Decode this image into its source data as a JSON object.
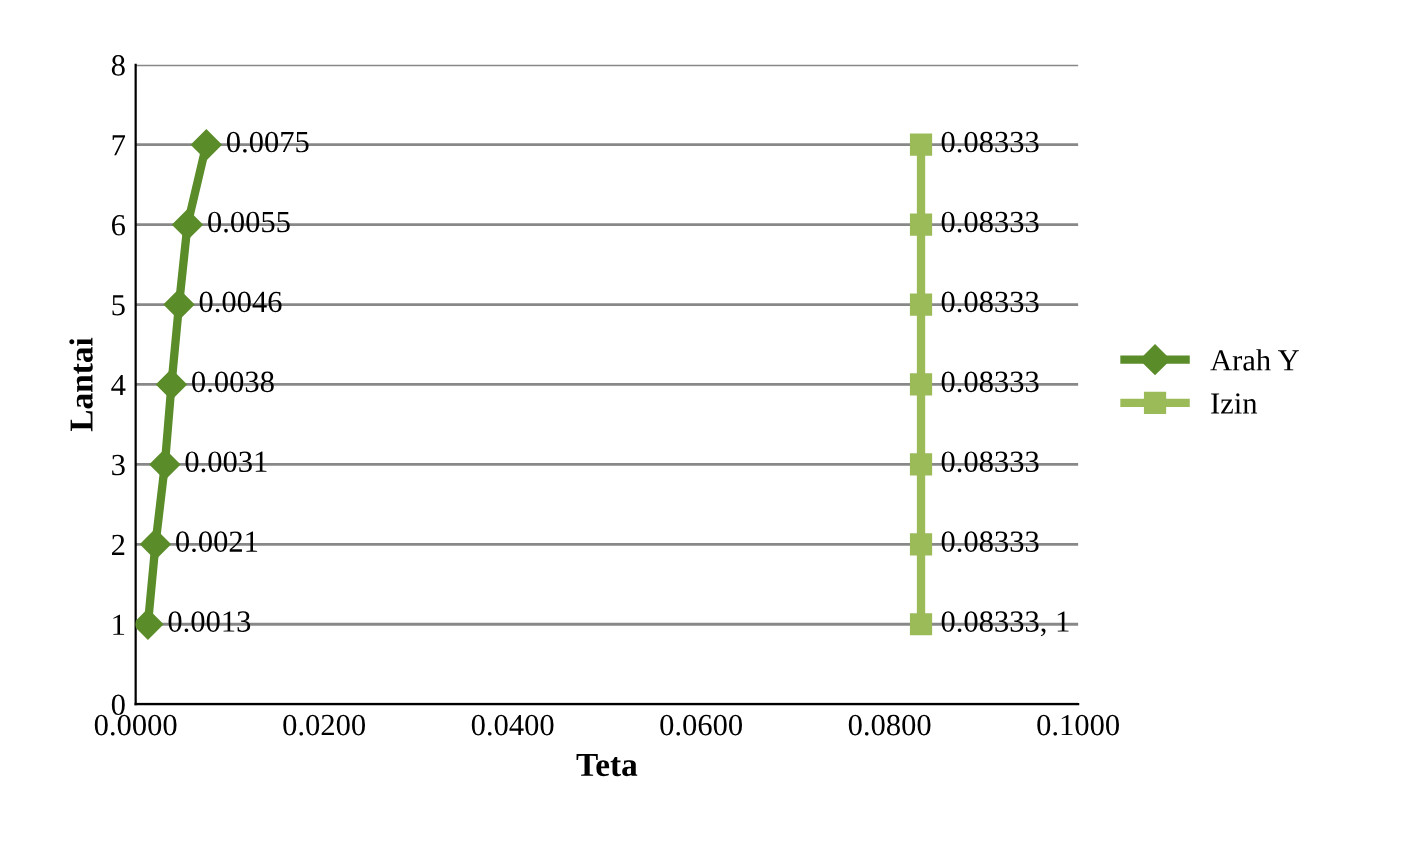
{
  "chart_data": {
    "type": "line",
    "xlabel": "Teta",
    "ylabel": "Lantai",
    "xlim": [
      0,
      0.1
    ],
    "xticks": [
      {
        "value": 0,
        "label": "0.0000"
      },
      {
        "value": 0.02,
        "label": "0.0200"
      },
      {
        "value": 0.04,
        "label": "0.0400"
      },
      {
        "value": 0.06,
        "label": "0.0600"
      },
      {
        "value": 0.08,
        "label": "0.0800"
      },
      {
        "value": 0.1,
        "label": "0.1000"
      }
    ],
    "ylim": [
      0,
      8
    ],
    "yticks": [
      0,
      1,
      2,
      3,
      4,
      5,
      6,
      7,
      8
    ],
    "grid": "y",
    "legend": "right",
    "series": [
      {
        "name": "Arah Y",
        "color": "#5b8c2a",
        "marker": "diamond",
        "x": [
          0.0013,
          0.0021,
          0.0031,
          0.0038,
          0.0046,
          0.0055,
          0.0075
        ],
        "values": [
          1,
          2,
          3,
          4,
          5,
          6,
          7
        ]
      },
      {
        "name": "Izin",
        "color": "#9bbb59",
        "marker": "square",
        "x": [
          0.08333,
          0.08333,
          0.08333,
          0.08333,
          0.08333,
          0.08333,
          0.08333
        ],
        "values": [
          1,
          2,
          3,
          4,
          5,
          6,
          7
        ]
      }
    ],
    "annotations": [
      {
        "text": "0.0013",
        "x": 0.0013,
        "y": 1
      },
      {
        "text": "0.0021",
        "x": 0.0021,
        "y": 2
      },
      {
        "text": "0.0031",
        "x": 0.0031,
        "y": 3
      },
      {
        "text": "0.0038",
        "x": 0.0038,
        "y": 4
      },
      {
        "text": "0.0046",
        "x": 0.0046,
        "y": 5
      },
      {
        "text": "0.0055",
        "x": 0.0055,
        "y": 6
      },
      {
        "text": "0.0075",
        "x": 0.0075,
        "y": 7
      },
      {
        "text": "0.08333, 1",
        "x": 0.08333,
        "y": 1
      },
      {
        "text": "0.08333",
        "x": 0.08333,
        "y": 2
      },
      {
        "text": "0.08333",
        "x": 0.08333,
        "y": 3
      },
      {
        "text": "0.08333",
        "x": 0.08333,
        "y": 4
      },
      {
        "text": "0.08333",
        "x": 0.08333,
        "y": 5
      },
      {
        "text": "0.08333",
        "x": 0.08333,
        "y": 6
      },
      {
        "text": "0.08333",
        "x": 0.08333,
        "y": 7
      }
    ]
  }
}
